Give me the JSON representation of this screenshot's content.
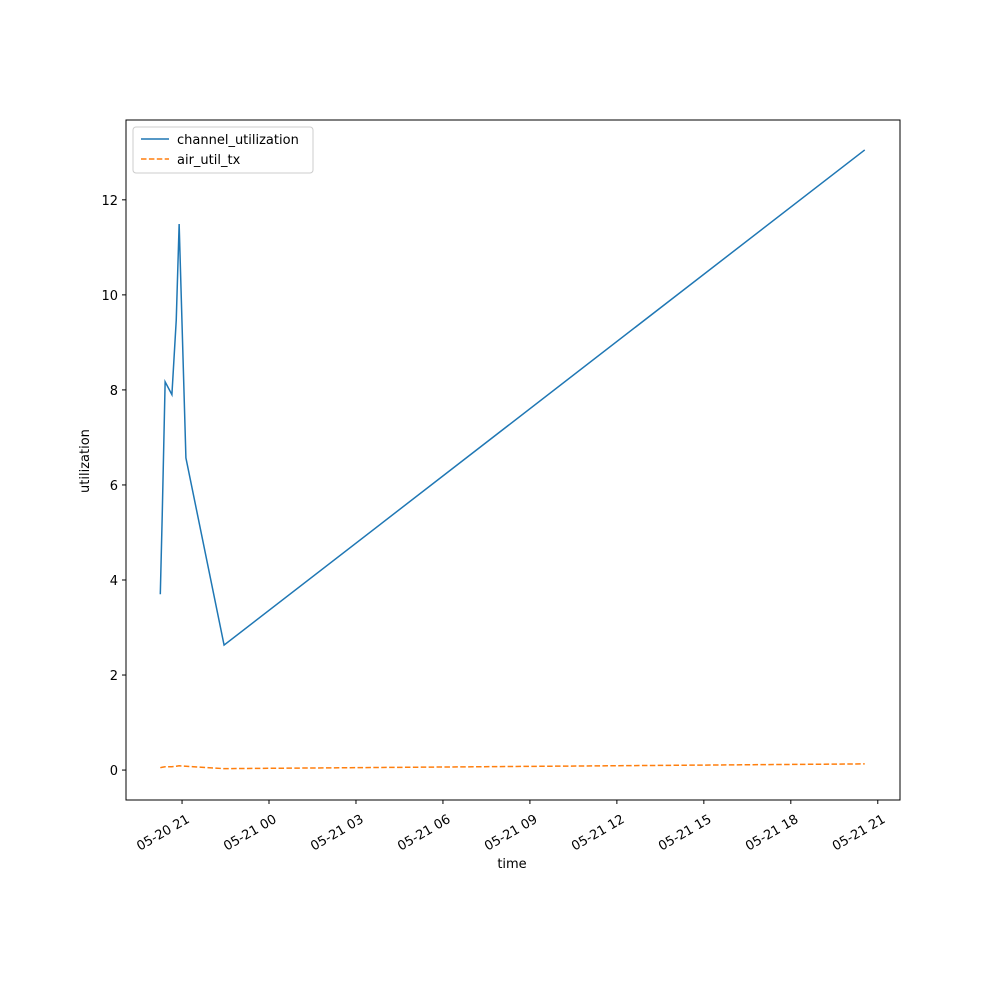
{
  "chart_data": {
    "type": "line",
    "x_label": "time",
    "y_label": "utilization",
    "x": [
      "05-20 20:15",
      "05-20 20:19",
      "05-20 20:25",
      "05-20 20:39",
      "05-20 20:48",
      "05-20 20:54",
      "05-20 21:08",
      "05-20 22:27",
      "05-21 20:33"
    ],
    "series": [
      {
        "name": "channel_utilization",
        "color": "#1f77b4",
        "dash": "solid",
        "values": [
          3.7,
          5.37,
          8.17,
          7.9,
          9.47,
          11.49,
          6.57,
          2.63,
          13.05
        ]
      },
      {
        "name": "air_util_tx",
        "color": "#ff7f0e",
        "dash": "dashed",
        "values": [
          0.05,
          0.06,
          0.07,
          0.07,
          0.08,
          0.09,
          0.08,
          0.03,
          0.13
        ]
      }
    ],
    "xlim": [
      "05-20 19:04",
      "05-21 21:46"
    ],
    "xticks": [
      "05-20 21",
      "05-21 00",
      "05-21 03",
      "05-21 06",
      "05-21 09",
      "05-21 12",
      "05-21 15",
      "05-21 18",
      "05-21 21"
    ],
    "ylim": [
      -0.63,
      13.68
    ],
    "yticks": [
      0,
      2,
      4,
      6,
      8,
      10,
      12
    ],
    "legend": "upper left"
  }
}
